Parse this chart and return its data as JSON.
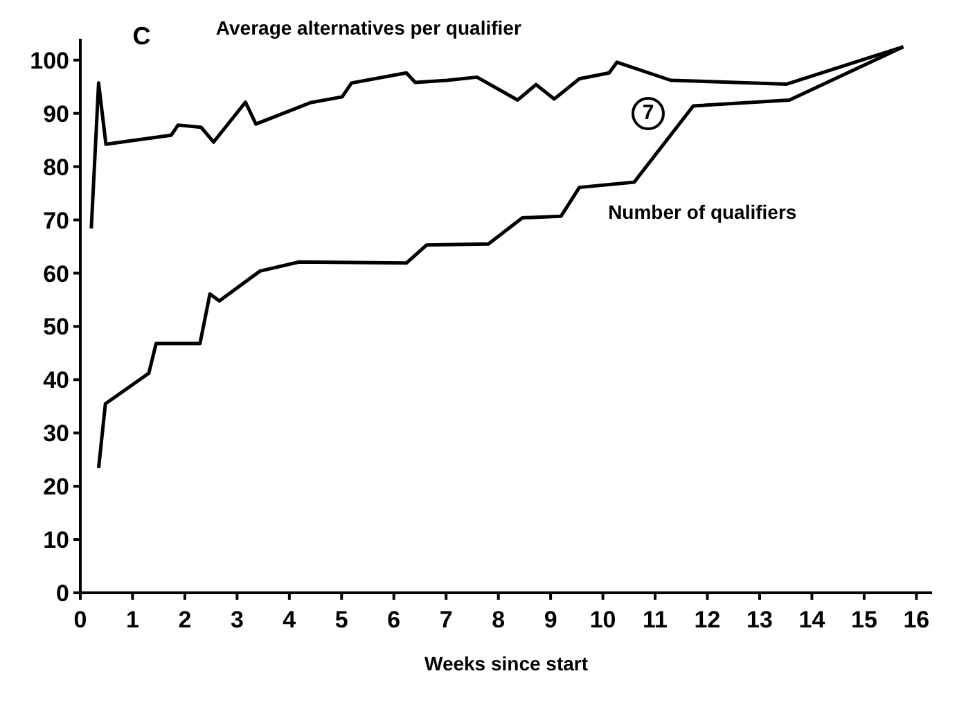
{
  "chart_data": {
    "type": "line",
    "xlabel": "Weeks since start",
    "annotations": [
      "C",
      "7"
    ],
    "series": [
      {
        "name": "Average alternatives per qualifier",
        "color": "#000000",
        "x": [
          0.21,
          0.35,
          0.49,
          1.74,
          1.87,
          2.31,
          2.55,
          3.16,
          3.36,
          4.4,
          5.01,
          5.19,
          6.24,
          6.41,
          7.02,
          7.59,
          8.37,
          8.72,
          9.07,
          9.55,
          10.12,
          10.27,
          11.3,
          13.52,
          15.75
        ],
        "values": [
          68.4,
          95.7,
          84.2,
          85.9,
          87.8,
          87.4,
          84.6,
          92.1,
          88,
          92,
          93.1,
          95.7,
          97.6,
          95.8,
          96.2,
          96.8,
          92.5,
          95.4,
          92.7,
          96.5,
          97.6,
          99.6,
          96.2,
          95.5,
          102.5
        ]
      },
      {
        "name": "Number of qualifiers",
        "color": "#000000",
        "x": [
          0.35,
          0.48,
          1.31,
          1.45,
          2.29,
          2.48,
          2.66,
          3.44,
          4.19,
          6.24,
          6.63,
          7.81,
          8.46,
          9.2,
          9.55,
          10.6,
          11.73,
          13.57,
          15.75
        ],
        "values": [
          23.4,
          35.5,
          41.2,
          46.8,
          46.8,
          56.1,
          54.8,
          60.4,
          62.1,
          61.9,
          65.3,
          65.5,
          70.4,
          70.7,
          76.1,
          77.1,
          91.4,
          92.5,
          102.5
        ]
      }
    ],
    "xlim": [
      0,
      16.3
    ],
    "xticks": [
      0,
      1,
      2,
      3,
      4,
      5,
      6,
      7,
      8,
      9,
      10,
      11,
      12,
      13,
      14,
      15,
      16
    ],
    "ylim": [
      0,
      104
    ],
    "yticks": [
      0,
      10,
      20,
      30,
      40,
      50,
      60,
      70,
      80,
      90,
      100
    ],
    "grid": false,
    "legend": false,
    "marker": "none",
    "line_style": "solid"
  }
}
